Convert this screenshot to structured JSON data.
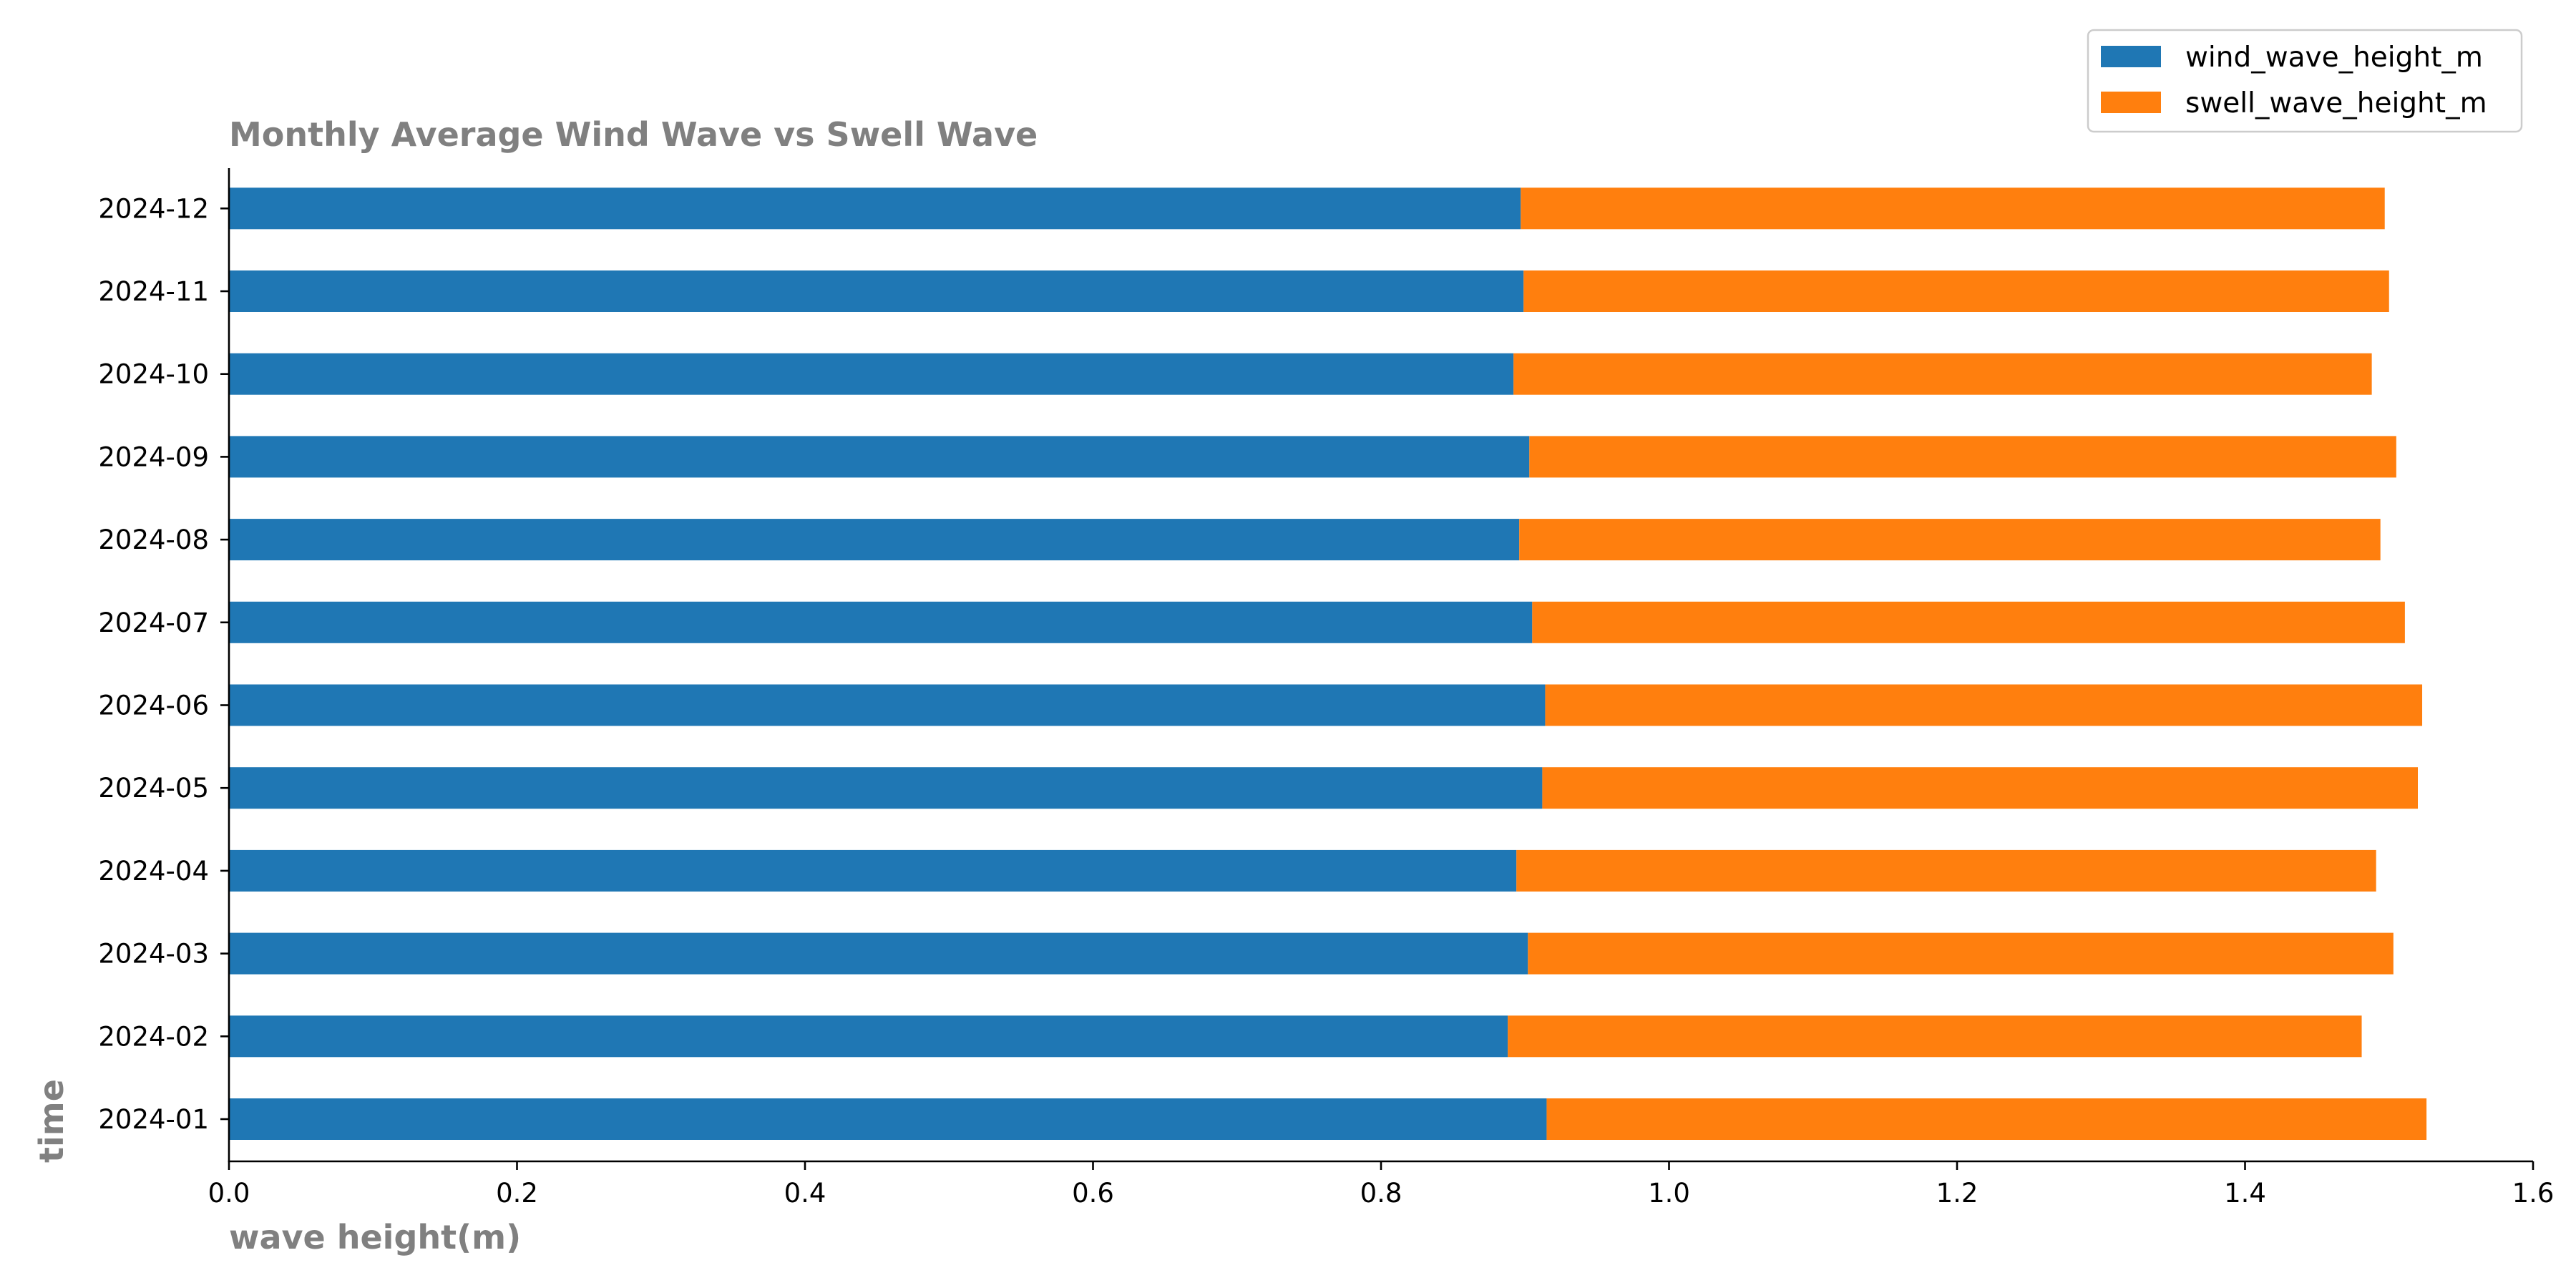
{
  "chart_data": {
    "type": "bar",
    "orientation": "horizontal",
    "stacked": true,
    "title": "Monthly Average Wind Wave vs Swell Wave",
    "xlabel": "wave height(m)",
    "ylabel": "time",
    "xlim": [
      0.0,
      1.6
    ],
    "xticks": [
      "0.0",
      "0.2",
      "0.4",
      "0.6",
      "0.8",
      "1.0",
      "1.2",
      "1.4",
      "1.6"
    ],
    "grid": false,
    "legend_position": "top-right",
    "categories": [
      "2024-01",
      "2024-02",
      "2024-03",
      "2024-04",
      "2024-05",
      "2024-06",
      "2024-07",
      "2024-08",
      "2024-09",
      "2024-10",
      "2024-11",
      "2024-12"
    ],
    "series": [
      {
        "name": "wind_wave_height_m",
        "color": "#1f77b4",
        "values": [
          0.915,
          0.888,
          0.902,
          0.894,
          0.912,
          0.914,
          0.905,
          0.896,
          0.903,
          0.892,
          0.899,
          0.897
        ]
      },
      {
        "name": "swell_wave_height_m",
        "color": "#ff7f0e",
        "values": [
          0.611,
          0.593,
          0.601,
          0.597,
          0.608,
          0.609,
          0.606,
          0.598,
          0.602,
          0.596,
          0.601,
          0.6
        ]
      }
    ]
  }
}
